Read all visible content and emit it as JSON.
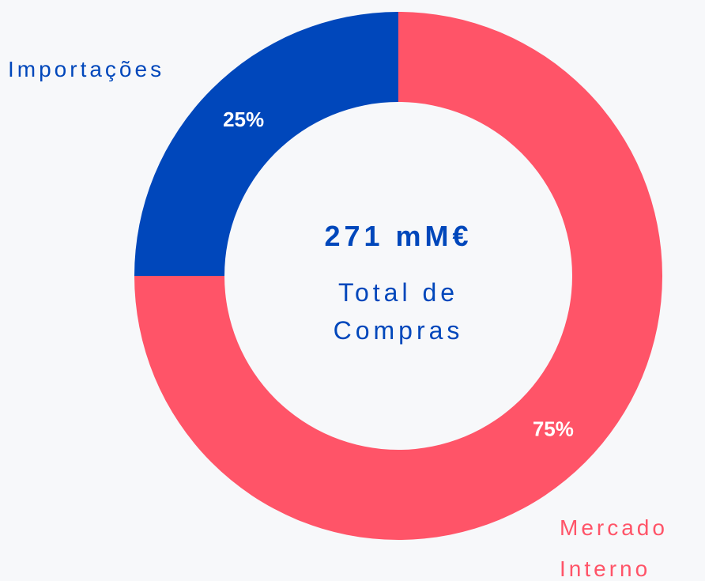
{
  "chart_data": {
    "type": "donut",
    "categories": [
      "Mercado Interno",
      "Importações"
    ],
    "values": [
      75,
      25
    ],
    "value_labels": [
      "75%",
      "25%"
    ],
    "colors": [
      "#ff5468",
      "#0047bb"
    ],
    "center_value": "271 mM€",
    "center_label": "Total de Compras"
  }
}
